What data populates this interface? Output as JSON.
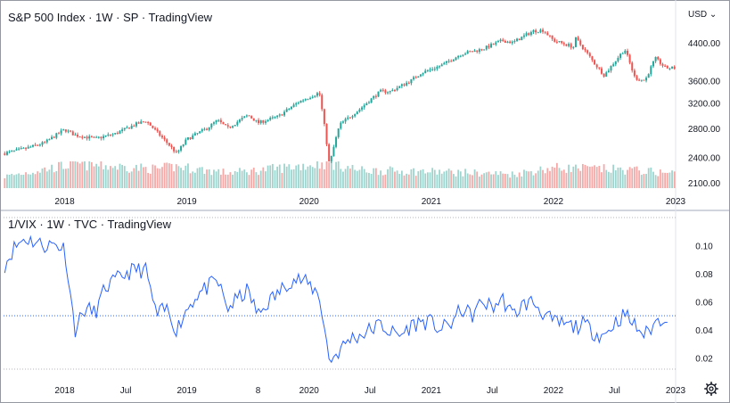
{
  "upper_pane": {
    "title": "S&P 500 Index · 1W · SP   · TradingView",
    "currency_label": "USD",
    "currency_arrow": "⌄"
  },
  "lower_pane": {
    "title": "1/VIX · 1W · TVC · TradingView"
  },
  "icons": {
    "settings": "gear-icon"
  },
  "colors": {
    "up": "#26a69a",
    "down": "#ef5350",
    "vol_up": "#9ed4cd",
    "vol_down": "#f5a9a7",
    "line": "#2962ff",
    "axis_text": "#131722"
  },
  "chart_data": [
    {
      "type": "candlestick",
      "title": "S&P 500 Index · 1W · SP   · TradingView",
      "ylabel": "",
      "xlabel": "",
      "scale": "log",
      "y_ticks": [
        2100,
        2400,
        2800,
        3200,
        3600,
        4400
      ],
      "x_ticks": [
        "2018",
        "2019",
        "2020",
        "2021",
        "2022",
        "2023"
      ],
      "x_range": [
        "2017-07",
        "2023-01"
      ],
      "ylim": [
        2050,
        4900
      ],
      "volume_shown": true,
      "grid": false,
      "close_series": {
        "x": [
          "2017-07",
          "2017-09",
          "2017-11",
          "2018-01",
          "2018-02",
          "2018-04",
          "2018-06",
          "2018-08",
          "2018-09",
          "2018-10",
          "2018-12",
          "2019-01",
          "2019-03",
          "2019-04",
          "2019-05",
          "2019-07",
          "2019-08",
          "2019-10",
          "2019-12",
          "2020-01",
          "2020-02",
          "2020-03",
          "2020-04",
          "2020-06",
          "2020-08",
          "2020-09",
          "2020-11",
          "2020-12",
          "2021-02",
          "2021-04",
          "2021-06",
          "2021-08",
          "2021-09",
          "2021-11",
          "2021-12",
          "2022-01",
          "2022-03",
          "2022-03",
          "2022-05",
          "2022-06",
          "2022-08",
          "2022-09",
          "2022-10",
          "2022-11",
          "2022-12"
        ],
        "y": [
          2450,
          2510,
          2590,
          2780,
          2700,
          2650,
          2720,
          2860,
          2910,
          2750,
          2450,
          2640,
          2800,
          2920,
          2800,
          3000,
          2880,
          2980,
          3220,
          3300,
          3380,
          2300,
          2850,
          3100,
          3400,
          3400,
          3600,
          3750,
          3900,
          4150,
          4250,
          4450,
          4400,
          4680,
          4700,
          4450,
          4300,
          4550,
          3950,
          3700,
          4250,
          3650,
          3600,
          4050,
          3850
        ]
      },
      "volume_series": {
        "x": [
          "2017-07",
          "2018-02",
          "2018-10",
          "2018-12",
          "2019-05",
          "2019-08",
          "2020-03",
          "2020-06",
          "2021-01",
          "2021-09",
          "2022-01",
          "2022-06",
          "2022-09",
          "2022-12"
        ],
        "relative": [
          0.45,
          0.95,
          0.75,
          0.85,
          0.6,
          0.7,
          1.0,
          0.7,
          0.65,
          0.55,
          0.8,
          0.75,
          0.7,
          0.6
        ]
      }
    },
    {
      "type": "line",
      "title": "1/VIX · 1W · TVC · TradingView",
      "ylabel": "",
      "xlabel": "",
      "y_ticks": [
        0.02,
        0.04,
        0.06,
        0.08,
        0.1
      ],
      "x_ticks": [
        "2018",
        "Jul",
        "2019",
        "8",
        "2020",
        "Jul",
        "2021",
        "Jul",
        "2022",
        "Jul",
        "2023"
      ],
      "x_range": [
        "2017-07",
        "2023-01"
      ],
      "ylim": [
        0.012,
        0.111
      ],
      "reference_lines": [
        0.05
      ],
      "grid": false,
      "series": [
        {
          "x": [
            "2017-07",
            "2017-08",
            "2017-09",
            "2017-10",
            "2017-11",
            "2017-12",
            "2018-01",
            "2018-02",
            "2018-03",
            "2018-04",
            "2018-05",
            "2018-06",
            "2018-07",
            "2018-08",
            "2018-09",
            "2018-10",
            "2018-11",
            "2018-12",
            "2019-01",
            "2019-02",
            "2019-03",
            "2019-04",
            "2019-05",
            "2019-06",
            "2019-07",
            "2019-08",
            "2019-09",
            "2019-10",
            "2019-11",
            "2019-12",
            "2020-01",
            "2020-02",
            "2020-03",
            "2020-04",
            "2020-05",
            "2020-06",
            "2020-07",
            "2020-08",
            "2020-09",
            "2020-10",
            "2020-11",
            "2020-12",
            "2021-01",
            "2021-02",
            "2021-03",
            "2021-04",
            "2021-05",
            "2021-06",
            "2021-07",
            "2021-08",
            "2021-09",
            "2021-10",
            "2021-11",
            "2021-12",
            "2022-01",
            "2022-02",
            "2022-03",
            "2022-04",
            "2022-05",
            "2022-06",
            "2022-07",
            "2022-08",
            "2022-09",
            "2022-10",
            "2022-11",
            "2022-12"
          ],
          "y": [
            0.085,
            0.098,
            0.105,
            0.103,
            0.1,
            0.101,
            0.098,
            0.04,
            0.055,
            0.052,
            0.07,
            0.075,
            0.08,
            0.083,
            0.082,
            0.05,
            0.055,
            0.04,
            0.055,
            0.065,
            0.07,
            0.075,
            0.055,
            0.062,
            0.068,
            0.05,
            0.06,
            0.066,
            0.075,
            0.076,
            0.072,
            0.065,
            0.018,
            0.025,
            0.034,
            0.036,
            0.04,
            0.044,
            0.038,
            0.036,
            0.043,
            0.046,
            0.045,
            0.04,
            0.045,
            0.055,
            0.05,
            0.06,
            0.056,
            0.062,
            0.05,
            0.058,
            0.06,
            0.052,
            0.045,
            0.044,
            0.042,
            0.044,
            0.038,
            0.036,
            0.045,
            0.051,
            0.043,
            0.036,
            0.045,
            0.05
          ]
        }
      ]
    }
  ]
}
